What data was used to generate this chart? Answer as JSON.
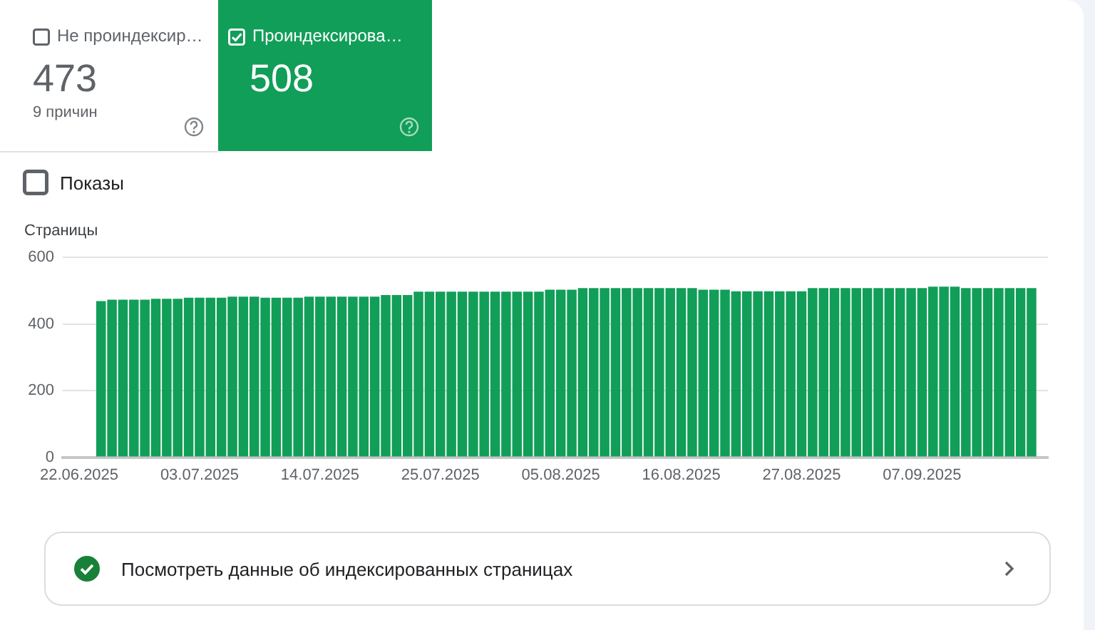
{
  "chart_data": {
    "type": "bar",
    "ylabel": "Страницы",
    "color": "#119e58",
    "categories": [
      null,
      "22.06.2025",
      null,
      null,
      null,
      null,
      null,
      null,
      null,
      null,
      null,
      null,
      "03.07.2025",
      null,
      null,
      null,
      null,
      null,
      null,
      null,
      null,
      null,
      null,
      "14.07.2025",
      null,
      null,
      null,
      null,
      null,
      null,
      null,
      null,
      null,
      null,
      "25.07.2025",
      null,
      null,
      null,
      null,
      null,
      null,
      null,
      null,
      null,
      null,
      "05.08.2025",
      null,
      null,
      null,
      null,
      null,
      null,
      null,
      null,
      null,
      null,
      "16.08.2025",
      null,
      null,
      null,
      null,
      null,
      null,
      null,
      null,
      null,
      null,
      "27.08.2025",
      null,
      null,
      null,
      null,
      null,
      null,
      null,
      null,
      null,
      null,
      "07.09.2025",
      null,
      null,
      null,
      null,
      null,
      null,
      null,
      null,
      null,
      null,
      null
    ],
    "values": [
      null,
      null,
      null,
      469,
      473,
      473,
      473,
      473,
      476,
      476,
      476,
      479,
      479,
      479,
      479,
      482,
      482,
      482,
      479,
      479,
      479,
      479,
      482,
      482,
      482,
      482,
      482,
      482,
      482,
      487,
      487,
      487,
      497,
      497,
      497,
      497,
      497,
      497,
      497,
      497,
      497,
      497,
      497,
      497,
      503,
      503,
      503,
      508,
      508,
      508,
      508,
      508,
      508,
      508,
      508,
      508,
      508,
      508,
      503,
      503,
      503,
      498,
      498,
      498,
      498,
      498,
      498,
      498,
      508,
      508,
      508,
      508,
      508,
      508,
      508,
      508,
      508,
      508,
      508,
      512,
      512,
      512,
      508,
      508,
      508,
      508,
      508,
      508,
      508,
      null
    ],
    "ylim": [
      0,
      600
    ],
    "yticks": [
      0,
      200,
      400,
      600
    ],
    "grid": "y",
    "legend": false,
    "annotations": [
      "Не проиндексир…",
      "473",
      "9 причин",
      "Проиндексирова…",
      "508",
      "Показы",
      "Посмотреть данные об индексированных страницах"
    ]
  }
}
